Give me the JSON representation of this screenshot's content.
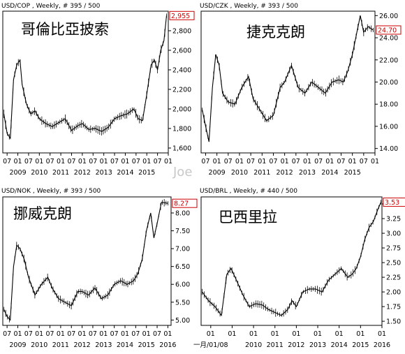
{
  "watermark": "Joe",
  "chart_data": [
    {
      "type": "line",
      "header": "USD/COP , Weekly, # 395 / 500",
      "overlay_title": "哥倫比亞披索",
      "last_price": "2,955",
      "ylim": [
        1550,
        3000
      ],
      "yticks": [
        1600,
        1800,
        2000,
        2200,
        2400,
        2600,
        2800
      ],
      "ytick_labels": [
        "1,600",
        "1,800",
        "2,000",
        "2,200",
        "2,400",
        "2,600",
        "2,800"
      ],
      "xlim": [
        2008.3,
        2016.0
      ],
      "xtick_labels": [
        "07",
        "01",
        "07",
        "01",
        "07",
        "01",
        "07",
        "01",
        "07",
        "01",
        "07",
        "01",
        "07",
        "01",
        "07",
        "01",
        "07"
      ],
      "xtick_positions": [
        2008.5,
        2009.0,
        2009.5,
        2010.0,
        2010.5,
        2011.0,
        2011.5,
        2012.0,
        2012.5,
        2013.0,
        2013.5,
        2014.0,
        2014.5,
        2015.0,
        2015.5,
        2016.0,
        2016.5
      ],
      "year_labels": [
        "2009",
        "2010",
        "2011",
        "2012",
        "2013",
        "2014",
        "2015"
      ],
      "year_positions": [
        2009.0,
        2010.0,
        2011.0,
        2012.0,
        2013.0,
        2014.0,
        2015.0
      ],
      "x": [
        2008.35,
        2008.5,
        2008.65,
        2008.8,
        2008.95,
        2009.1,
        2009.2,
        2009.4,
        2009.6,
        2009.8,
        2010.0,
        2010.3,
        2010.6,
        2010.9,
        2011.2,
        2011.5,
        2011.8,
        2012.0,
        2012.3,
        2012.6,
        2012.9,
        2013.2,
        2013.5,
        2013.8,
        2014.1,
        2014.4,
        2014.6,
        2014.8,
        2015.0,
        2015.2,
        2015.35,
        2015.5,
        2015.65,
        2015.8,
        2015.92
      ],
      "y": [
        1950,
        1750,
        1700,
        2300,
        2450,
        2500,
        2250,
        2050,
        1950,
        1980,
        1900,
        1850,
        1820,
        1860,
        1900,
        1780,
        1830,
        1850,
        1790,
        1800,
        1770,
        1810,
        1900,
        1930,
        1950,
        2000,
        1900,
        1880,
        2150,
        2450,
        2500,
        2400,
        2600,
        2700,
        2955
      ]
    },
    {
      "type": "line",
      "header": "USD/CZK , Weekly, # 393 / 500",
      "overlay_title": "捷克克朗",
      "last_price": "24.70",
      "ylim": [
        13.6,
        26.4
      ],
      "yticks": [
        14,
        16,
        18,
        20,
        22,
        24,
        26
      ],
      "ytick_labels": [
        "14.00",
        "16.00",
        "18.00",
        "20.00",
        "22.00",
        "24.00",
        "26.00"
      ],
      "xlim": [
        2008.3,
        2016.0
      ],
      "xtick_labels": [
        "07",
        "01",
        "07",
        "01",
        "07",
        "01",
        "07",
        "01",
        "07",
        "01",
        "07",
        "01",
        "07",
        "01",
        "07",
        "01",
        "07"
      ],
      "xtick_positions": [
        2008.5,
        2009.0,
        2009.5,
        2010.0,
        2010.5,
        2011.0,
        2011.5,
        2012.0,
        2012.5,
        2013.0,
        2013.5,
        2014.0,
        2014.5,
        2015.0,
        2015.5,
        2016.0,
        2016.5
      ],
      "year_labels": [
        "2009",
        "2010",
        "2011",
        "2012",
        "2013",
        "2014",
        "2015"
      ],
      "year_positions": [
        2009.0,
        2010.0,
        2011.0,
        2012.0,
        2013.0,
        2014.0,
        2015.0
      ],
      "x": [
        2008.35,
        2008.5,
        2008.65,
        2008.8,
        2008.95,
        2009.1,
        2009.25,
        2009.5,
        2009.8,
        2010.1,
        2010.4,
        2010.6,
        2010.9,
        2011.2,
        2011.5,
        2011.8,
        2012.0,
        2012.3,
        2012.6,
        2012.9,
        2013.2,
        2013.5,
        2013.8,
        2014.1,
        2014.4,
        2014.6,
        2014.8,
        2015.0,
        2015.2,
        2015.35,
        2015.5,
        2015.7,
        2015.92
      ],
      "y": [
        17.5,
        16.0,
        14.6,
        19.5,
        22.5,
        21.5,
        19.0,
        18.2,
        18.0,
        19.5,
        20.5,
        18.5,
        17.5,
        16.5,
        17.0,
        19.5,
        20.0,
        21.5,
        19.5,
        19.0,
        20.0,
        19.5,
        19.0,
        20.0,
        20.2,
        20.0,
        21.0,
        22.5,
        24.5,
        26.0,
        24.5,
        25.0,
        24.7
      ]
    },
    {
      "type": "line",
      "header": "USD/NOK , Weekly, # 393 / 500",
      "overlay_title": "挪威克朗",
      "last_price": "8.27",
      "ylim": [
        4.85,
        8.45
      ],
      "yticks": [
        5.0,
        5.5,
        6.0,
        6.5,
        7.0,
        7.5,
        8.0
      ],
      "ytick_labels": [
        "5.00",
        "5.50",
        "6.00",
        "6.50",
        "7.00",
        "7.50",
        "8.00"
      ],
      "xlim": [
        2008.3,
        2016.15
      ],
      "xtick_labels": [
        "07",
        "01",
        "07",
        "01",
        "07",
        "01",
        "07",
        "01",
        "07",
        "01",
        "07",
        "01",
        "07",
        "01",
        "07",
        "01"
      ],
      "xtick_positions": [
        2008.5,
        2009.0,
        2009.5,
        2010.0,
        2010.5,
        2011.0,
        2011.5,
        2012.0,
        2012.5,
        2013.0,
        2013.5,
        2014.0,
        2014.5,
        2015.0,
        2015.5,
        2016.0
      ],
      "year_labels": [
        "2009",
        "2010",
        "2011",
        "2012",
        "2013",
        "2014",
        "2015",
        "2016"
      ],
      "year_positions": [
        2009.0,
        2010.0,
        2011.0,
        2012.0,
        2013.0,
        2014.0,
        2015.0,
        2016.0
      ],
      "x": [
        2008.35,
        2008.5,
        2008.65,
        2008.8,
        2008.95,
        2009.1,
        2009.3,
        2009.5,
        2009.8,
        2010.1,
        2010.4,
        2010.6,
        2010.9,
        2011.2,
        2011.5,
        2011.8,
        2012.0,
        2012.3,
        2012.6,
        2012.9,
        2013.2,
        2013.5,
        2013.8,
        2014.1,
        2014.4,
        2014.6,
        2014.8,
        2015.0,
        2015.2,
        2015.35,
        2015.5,
        2015.7,
        2016.0
      ],
      "y": [
        5.3,
        5.1,
        5.0,
        6.5,
        7.1,
        7.0,
        6.7,
        6.2,
        5.7,
        6.0,
        6.2,
        5.9,
        5.6,
        5.5,
        5.4,
        5.8,
        5.8,
        5.7,
        5.9,
        5.6,
        5.7,
        6.0,
        6.1,
        6.0,
        6.1,
        6.3,
        6.7,
        7.5,
        8.0,
        7.3,
        7.7,
        8.3,
        8.27
      ]
    },
    {
      "type": "line",
      "header": "USD/BRL , Weekly, # 440 / 500",
      "overlay_title": "巴西里拉",
      "last_price": "3.53",
      "ylim": [
        1.43,
        3.62
      ],
      "yticks": [
        1.5,
        1.75,
        2.0,
        2.25,
        2.5,
        2.75,
        3.0,
        3.25,
        3.5
      ],
      "ytick_labels": [
        "1.50",
        "1.75",
        "2.00",
        "2.25",
        "2.50",
        "2.75",
        "3.00",
        "3.25",
        "3.50"
      ],
      "xlim": [
        2007.55,
        2016.0
      ],
      "xtick_labels": [
        "01",
        "01",
        "01",
        "01",
        "01",
        "01",
        "01",
        "01",
        "01"
      ],
      "xtick_positions": [
        2008.0,
        2009.0,
        2010.0,
        2011.0,
        2012.0,
        2013.0,
        2014.0,
        2015.0,
        2016.0
      ],
      "year_labels": [
        "一月/01/08",
        "2010",
        "2011",
        "2012",
        "2013",
        "2014",
        "2015",
        "2016"
      ],
      "year_positions": [
        2008.0,
        2010.0,
        2011.0,
        2012.0,
        2013.0,
        2014.0,
        2015.0,
        2016.0
      ],
      "x": [
        2007.6,
        2007.9,
        2008.2,
        2008.5,
        2008.75,
        2008.95,
        2009.2,
        2009.5,
        2009.8,
        2010.1,
        2010.4,
        2010.7,
        2011.0,
        2011.3,
        2011.6,
        2011.8,
        2012.0,
        2012.3,
        2012.6,
        2012.9,
        2013.2,
        2013.5,
        2013.8,
        2014.1,
        2014.4,
        2014.6,
        2014.8,
        2015.0,
        2015.2,
        2015.4,
        2015.6,
        2015.8,
        2015.95
      ],
      "y": [
        2.0,
        1.85,
        1.75,
        1.6,
        2.3,
        2.4,
        2.2,
        1.95,
        1.75,
        1.8,
        1.78,
        1.7,
        1.65,
        1.6,
        1.7,
        1.85,
        1.75,
        2.0,
        2.05,
        2.05,
        2.0,
        2.2,
        2.3,
        2.4,
        2.25,
        2.3,
        2.4,
        2.6,
        2.9,
        3.1,
        3.2,
        3.4,
        3.53
      ]
    }
  ]
}
